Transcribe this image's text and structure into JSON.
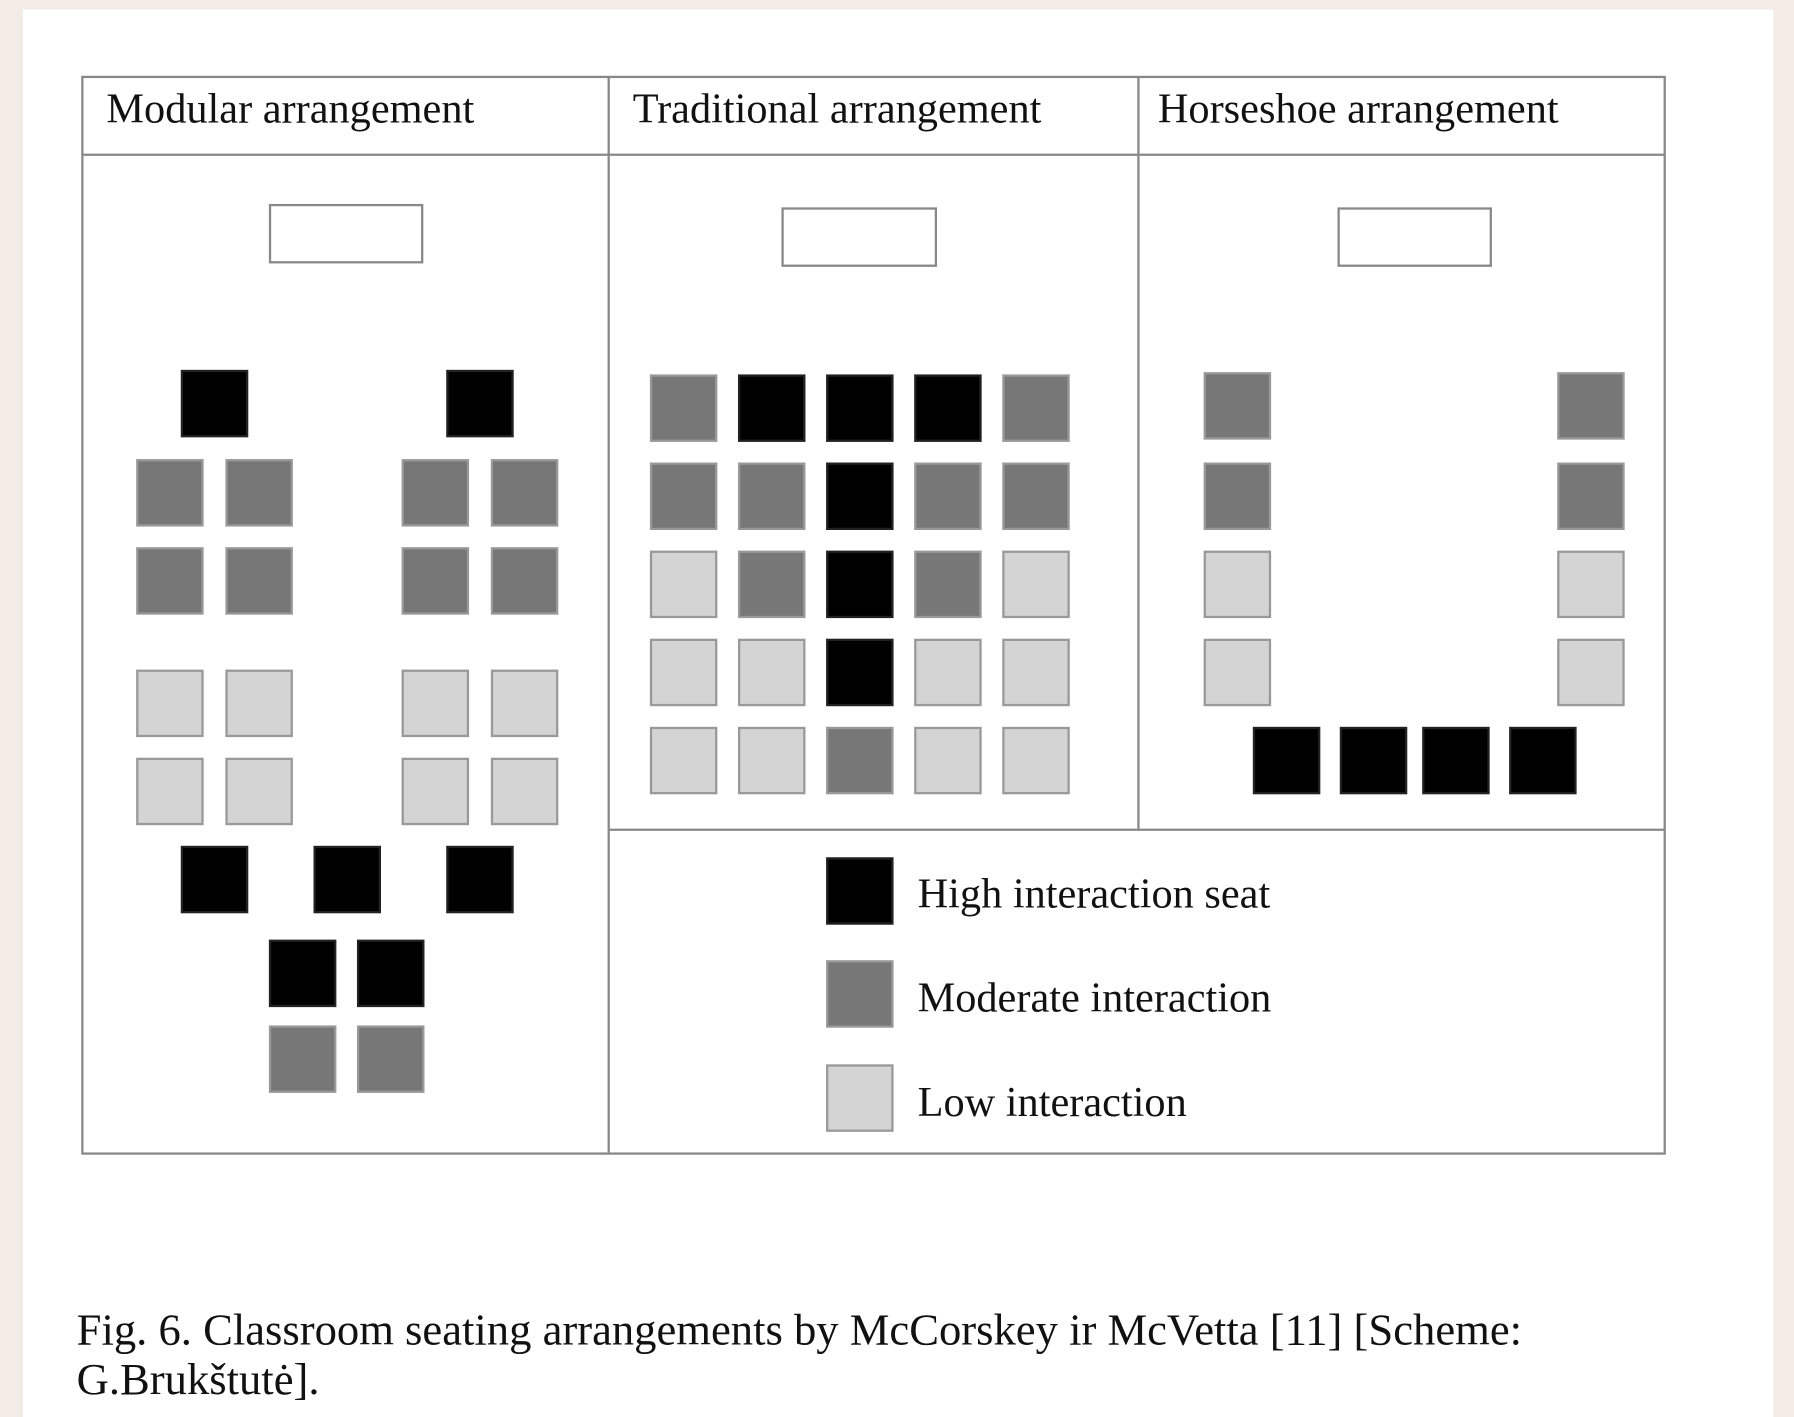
{
  "panels": [
    {
      "title": "Modular arrangement"
    },
    {
      "title": "Traditional arrangement"
    },
    {
      "title": "Horseshoe arrangement"
    }
  ],
  "legend": [
    {
      "label": "High interaction seat"
    },
    {
      "label": "Moderate interaction"
    },
    {
      "label": "Low interaction"
    }
  ],
  "caption": {
    "lines": [
      "Fig. 6. Classroom seating arrangements by McCorskey ir McVetta [11] [Scheme:",
      "G.Brukštutė]."
    ]
  }
}
